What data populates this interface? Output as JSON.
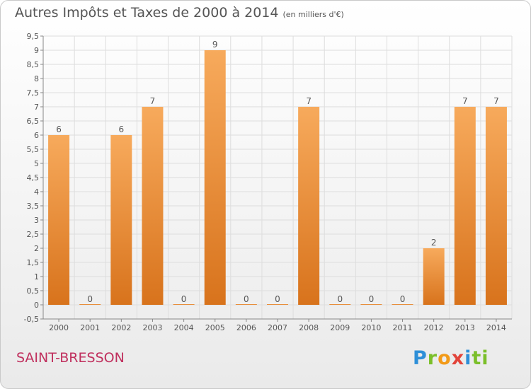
{
  "header": {
    "title": "Autres Impôts et Taxes de 2000 à 2014",
    "unit": "(en milliers d'€)"
  },
  "commune": "SAINT-BRESSON",
  "logo": {
    "letters": [
      "P",
      "r",
      "o",
      "x",
      "i",
      "ti"
    ]
  },
  "colors": {
    "bar_top": "#f7aa5c",
    "bar_bottom": "#d8731c",
    "grid": "#dddddd",
    "axis": "#888888",
    "text": "#555555",
    "commune": "#c0305e"
  },
  "chart_data": {
    "type": "bar",
    "categories": [
      "2000",
      "2001",
      "2002",
      "2003",
      "2004",
      "2005",
      "2006",
      "2007",
      "2008",
      "2009",
      "2010",
      "2011",
      "2012",
      "2013",
      "2014"
    ],
    "values": [
      6,
      0,
      6,
      7,
      0,
      9,
      0,
      0,
      7,
      0,
      0,
      0,
      2,
      7,
      7
    ],
    "title": "Autres Impôts et Taxes de 2000 à 2014",
    "subtitle": "(en milliers d'€)",
    "ylim": [
      -0.5,
      9.5
    ],
    "yticks": [
      -0.5,
      0,
      0.5,
      1,
      1.5,
      2,
      2.5,
      3,
      3.5,
      4,
      4.5,
      5,
      5.5,
      6,
      6.5,
      7,
      7.5,
      8,
      8.5,
      9,
      9.5
    ],
    "ytick_labels": [
      "-0,5",
      "0",
      "0,5",
      "1",
      "1,5",
      "2",
      "2,5",
      "3",
      "3,5",
      "4",
      "4,5",
      "5",
      "5,5",
      "6",
      "6,5",
      "7",
      "7,5",
      "8",
      "8,5",
      "9",
      "9,5"
    ],
    "grid": true,
    "data_labels": true
  }
}
